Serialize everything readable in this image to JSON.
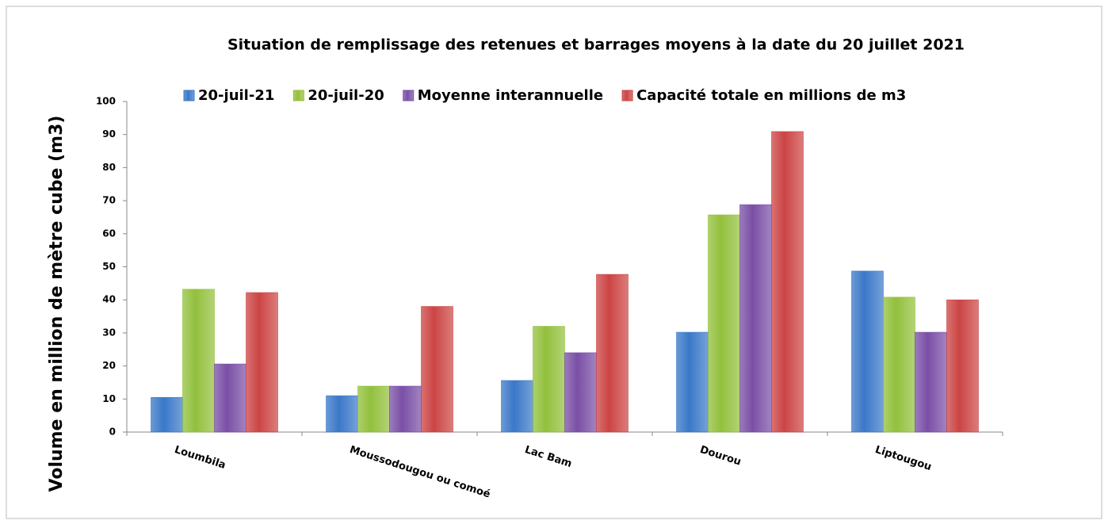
{
  "chart_data": {
    "type": "bar",
    "title": "Situation de remplissage des retenues et barrages moyens à la date du 20 juillet 2021",
    "y_label": "Volume en million de mètre cube (m3)",
    "categories": [
      "Loumbila",
      "Moussodougou ou comoé",
      "Lac Bam",
      "Dourou",
      "Liptougou"
    ],
    "series": [
      {
        "name": "20-juil-21",
        "color": "#3a78c8",
        "values": [
          10.5,
          11,
          15.6,
          30.2,
          48.7
        ]
      },
      {
        "name": "20-juil-20",
        "color": "#92c03c",
        "values": [
          43.2,
          13.9,
          32,
          65.7,
          40.8
        ]
      },
      {
        "name": "Moyenne interannuelle",
        "color": "#7a4fa6",
        "values": [
          20.6,
          13.9,
          24,
          68.8,
          30.2
        ]
      },
      {
        "name": "Capacité totale en millions de m3",
        "color": "#cc4444",
        "values": [
          42.2,
          38,
          47.7,
          90.9,
          40
        ]
      }
    ],
    "ylim": [
      0,
      100
    ],
    "yticks": [
      0,
      10,
      20,
      30,
      40,
      50,
      60,
      70,
      80,
      90,
      100
    ],
    "legend": "top"
  }
}
